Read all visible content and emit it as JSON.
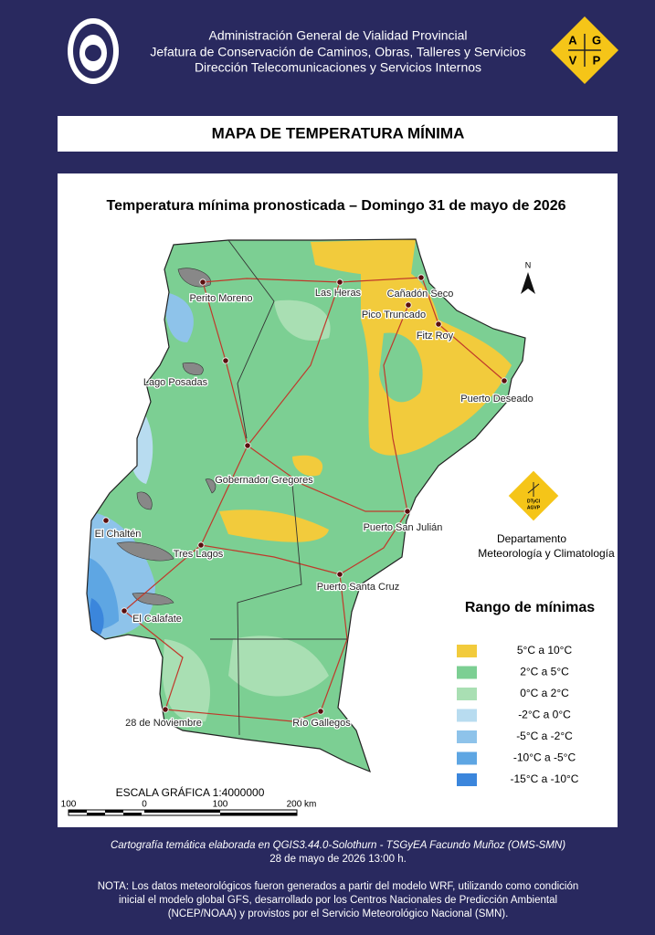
{
  "header": {
    "lines": [
      "Administración General de Vialidad Provincial",
      "Jefatura de Conservación de Caminos, Obras, Talleres y Servicios",
      "Dirección Telecomunicaciones y Servicios Internos"
    ],
    "logo_letters": [
      "A",
      "G",
      "V",
      "P"
    ]
  },
  "title": "MAPA DE TEMPERATURA MÍNIMA",
  "map": {
    "subtitle": "Temperatura mínima pronosticada – Domingo 31 de mayo de 2026",
    "north": "N",
    "towns": [
      "Perito Moreno",
      "Las Heras",
      "Cañadón Seco",
      "Pico Truncado",
      "Fitz Roy",
      "Lago Posadas",
      "Puerto Deseado",
      "Gobernador Gregores",
      "Puerto San Julián",
      "El Chaltén",
      "Tres Lagos",
      "Puerto Santa Cruz",
      "El Calafate",
      "28 de Noviembre",
      "Río Gallegos"
    ],
    "department": {
      "logo": [
        "DTyCI",
        "AGVP"
      ],
      "lines": [
        "Departamento",
        "Meteorología y Climatología"
      ]
    },
    "legend": {
      "title": "Rango  de mínimas",
      "items": [
        {
          "label": "5°C a 10°C",
          "color": "#f2cb3c"
        },
        {
          "label": "2°C a 5°C",
          "color": "#7ccf93"
        },
        {
          "label": "0°C a 2°C",
          "color": "#a9dfb3"
        },
        {
          "label": "-2°C a 0°C",
          "color": "#b8dcf0"
        },
        {
          "label": "-5°C a -2°C",
          "color": "#8ec3ea"
        },
        {
          "label": "-10°C a -5°C",
          "color": "#5ea6e3"
        },
        {
          "label": "-15°C a -10°C",
          "color": "#3b86dc"
        }
      ]
    },
    "scale": {
      "title": "ESCALA GRÁFICA 1:4000000",
      "labels": [
        "100",
        "0",
        "100",
        "200 km"
      ]
    }
  },
  "footer": {
    "credit": [
      "Cartografía temática elaborada en QGIS3.44.0-Solothurn - TSGyEA Facundo Muñoz (OMS-SMN)",
      "28 de mayo de 2026 13:00 h."
    ],
    "note": [
      "NOTA: Los datos meteorológicos fueron generados a partir del modelo WRF, utilizando como condición",
      "inicial el modelo global GFS, desarrollado por los Centros Nacionales de Predicción Ambiental",
      "(NCEP/NOAA) y provistos por el Servicio Meteorológico Nacional (SMN)."
    ]
  }
}
